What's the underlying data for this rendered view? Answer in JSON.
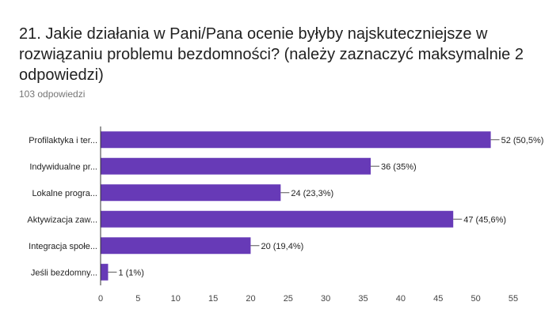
{
  "question": {
    "title": "21. Jakie działania w Pani/Pana ocenie byłyby najskuteczniejsze w rozwiązaniu problemu bezdomności? (należy zaznaczyć maksymalnie 2 odpowiedzi)",
    "responses": "103 odpowiedzi"
  },
  "chart_data": {
    "type": "bar",
    "orientation": "horizontal",
    "categories": [
      "Profilaktyka i ter...",
      "Indywidualne pr...",
      "Lokalne progra...",
      "Aktywizacja zaw...",
      "Integracja społe...",
      "Jeśli bezdomny..."
    ],
    "values": [
      52,
      36,
      24,
      47,
      20,
      1
    ],
    "value_labels": [
      "52 (50,5%)",
      "36 (35%)",
      "24 (23,3%)",
      "47 (45,6%)",
      "20 (19,4%)",
      "1 (1%)"
    ],
    "xlim": [
      0,
      55
    ],
    "xticks": [
      0,
      5,
      10,
      15,
      20,
      25,
      30,
      35,
      40,
      45,
      50,
      55
    ],
    "grid": false,
    "bar_color": "#673ab7"
  }
}
